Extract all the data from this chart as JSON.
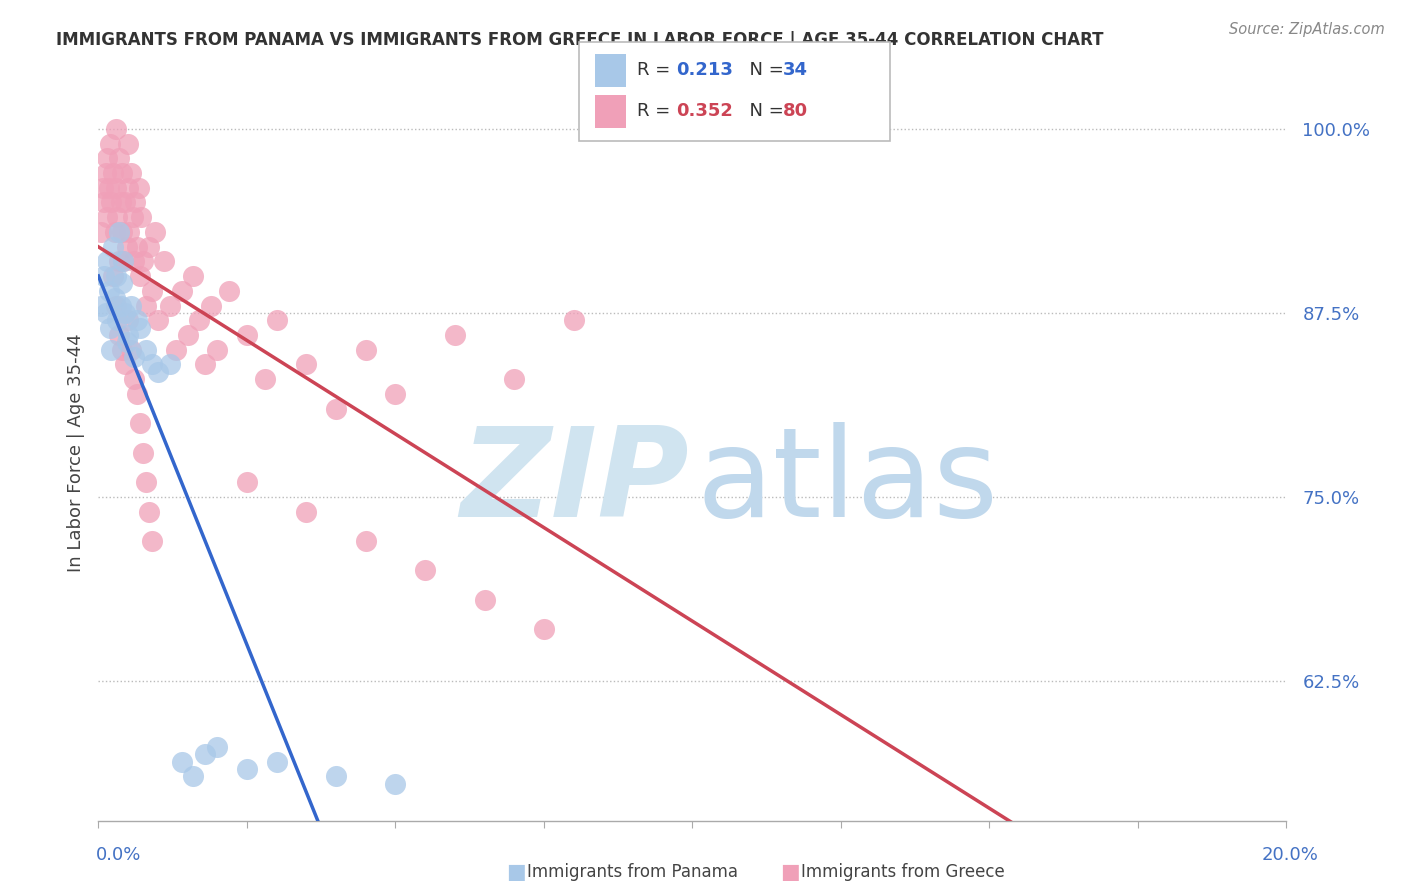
{
  "title": "IMMIGRANTS FROM PANAMA VS IMMIGRANTS FROM GREECE IN LABOR FORCE | AGE 35-44 CORRELATION CHART",
  "source": "Source: ZipAtlas.com",
  "ylabel": "In Labor Force | Age 35-44",
  "xmin": 0.0,
  "xmax": 20.0,
  "ymin": 53.0,
  "ymax": 103.0,
  "yticks": [
    62.5,
    75.0,
    87.5,
    100.0
  ],
  "ytick_labels": [
    "62.5%",
    "75.0%",
    "87.5%",
    "100.0%"
  ],
  "legend_R_panama": "0.213",
  "legend_N_panama": "34",
  "legend_R_greece": "0.352",
  "legend_N_greece": "80",
  "panama_color": "#A8C8E8",
  "greece_color": "#F0A0B8",
  "panama_line_color": "#3366CC",
  "greece_line_color": "#CC4455",
  "watermark_zip_color": "#D8E8F4",
  "watermark_atlas_color": "#C8D8EC",
  "panama_x": [
    0.05,
    0.1,
    0.12,
    0.15,
    0.18,
    0.2,
    0.22,
    0.25,
    0.28,
    0.3,
    0.32,
    0.35,
    0.38,
    0.4,
    0.42,
    0.45,
    0.48,
    0.5,
    0.55,
    0.6,
    0.65,
    0.7,
    0.8,
    0.9,
    1.0,
    1.2,
    1.4,
    1.6,
    1.8,
    2.0,
    2.5,
    3.0,
    4.0,
    5.0
  ],
  "panama_y": [
    88.0,
    90.0,
    87.5,
    91.0,
    89.0,
    86.5,
    85.0,
    92.0,
    88.5,
    90.0,
    87.0,
    93.0,
    88.0,
    89.5,
    91.0,
    87.5,
    85.5,
    86.0,
    88.0,
    84.5,
    87.0,
    86.5,
    85.0,
    84.0,
    83.5,
    84.0,
    57.0,
    56.0,
    57.5,
    58.0,
    56.5,
    57.0,
    56.0,
    55.5
  ],
  "greece_x": [
    0.05,
    0.08,
    0.1,
    0.12,
    0.15,
    0.15,
    0.18,
    0.2,
    0.22,
    0.25,
    0.28,
    0.3,
    0.3,
    0.32,
    0.35,
    0.35,
    0.38,
    0.4,
    0.4,
    0.42,
    0.45,
    0.48,
    0.5,
    0.5,
    0.52,
    0.55,
    0.58,
    0.6,
    0.62,
    0.65,
    0.68,
    0.7,
    0.72,
    0.75,
    0.8,
    0.85,
    0.9,
    0.95,
    1.0,
    1.1,
    1.2,
    1.3,
    1.4,
    1.5,
    1.6,
    1.7,
    1.8,
    1.9,
    2.0,
    2.2,
    2.5,
    2.8,
    3.0,
    3.5,
    4.0,
    4.5,
    5.0,
    6.0,
    7.0,
    8.0,
    0.25,
    0.3,
    0.35,
    0.4,
    0.45,
    0.5,
    0.55,
    0.6,
    0.65,
    0.7,
    0.75,
    0.8,
    0.85,
    0.9,
    2.5,
    3.5,
    4.5,
    5.5,
    6.5,
    7.5
  ],
  "greece_y": [
    93.0,
    96.0,
    95.0,
    97.0,
    98.0,
    94.0,
    96.0,
    99.0,
    95.0,
    97.0,
    93.0,
    96.0,
    100.0,
    94.0,
    98.0,
    91.0,
    95.0,
    93.0,
    97.0,
    91.0,
    95.0,
    92.0,
    96.0,
    99.0,
    93.0,
    97.0,
    94.0,
    91.0,
    95.0,
    92.0,
    96.0,
    90.0,
    94.0,
    91.0,
    88.0,
    92.0,
    89.0,
    93.0,
    87.0,
    91.0,
    88.0,
    85.0,
    89.0,
    86.0,
    90.0,
    87.0,
    84.0,
    88.0,
    85.0,
    89.0,
    86.0,
    83.0,
    87.0,
    84.0,
    81.0,
    85.0,
    82.0,
    86.0,
    83.0,
    87.0,
    90.0,
    88.0,
    86.0,
    85.0,
    84.0,
    87.0,
    85.0,
    83.0,
    82.0,
    80.0,
    78.0,
    76.0,
    74.0,
    72.0,
    76.0,
    74.0,
    72.0,
    70.0,
    68.0,
    66.0
  ]
}
